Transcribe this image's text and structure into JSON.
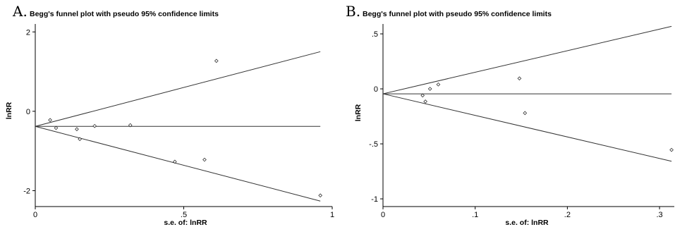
{
  "chart_data": [
    {
      "type": "scatter",
      "panel_letter": "A.",
      "title": "Begg's funnel plot with pseudo 95% confidence limits",
      "xlabel": "s.e. of: lnRR",
      "ylabel": "lnRR",
      "xlim": [
        0,
        1
      ],
      "ylim": [
        -2.4,
        2.2
      ],
      "xticks": [
        0,
        0.5,
        1
      ],
      "xtick_labels": [
        "0",
        ".5",
        "1"
      ],
      "yticks": [
        -2,
        0,
        2
      ],
      "ytick_labels": [
        "-2",
        "0",
        "2"
      ],
      "pooled_estimate": -0.38,
      "x_max": 0.96,
      "points": [
        {
          "x": 0.05,
          "y": -0.22
        },
        {
          "x": 0.07,
          "y": -0.42
        },
        {
          "x": 0.14,
          "y": -0.45
        },
        {
          "x": 0.15,
          "y": -0.7
        },
        {
          "x": 0.2,
          "y": -0.37
        },
        {
          "x": 0.32,
          "y": -0.35
        },
        {
          "x": 0.47,
          "y": -1.27
        },
        {
          "x": 0.57,
          "y": -1.22
        },
        {
          "x": 0.61,
          "y": 1.27
        },
        {
          "x": 0.96,
          "y": -2.12
        }
      ]
    },
    {
      "type": "scatter",
      "panel_letter": "B.",
      "title": "Begg's funnel plot with pseudo 95% confidence limits",
      "xlabel": "s.e. of: lnRR",
      "ylabel": "lnRR",
      "xlim": [
        0,
        0.316
      ],
      "ylim": [
        -1.07,
        0.59
      ],
      "xticks": [
        0,
        0.1,
        0.2,
        0.3
      ],
      "xtick_labels": [
        "0",
        ".1",
        ".2",
        ".3"
      ],
      "yticks": [
        -1,
        -0.5,
        0,
        0.5
      ],
      "ytick_labels": [
        "-1",
        "-.5",
        "0",
        ".5"
      ],
      "pooled_estimate": -0.045,
      "x_max": 0.313,
      "points": [
        {
          "x": 0.043,
          "y": -0.06
        },
        {
          "x": 0.046,
          "y": -0.115
        },
        {
          "x": 0.051,
          "y": 0.0
        },
        {
          "x": 0.06,
          "y": 0.04
        },
        {
          "x": 0.148,
          "y": 0.095
        },
        {
          "x": 0.154,
          "y": -0.22
        },
        {
          "x": 0.313,
          "y": -0.555
        }
      ]
    }
  ]
}
